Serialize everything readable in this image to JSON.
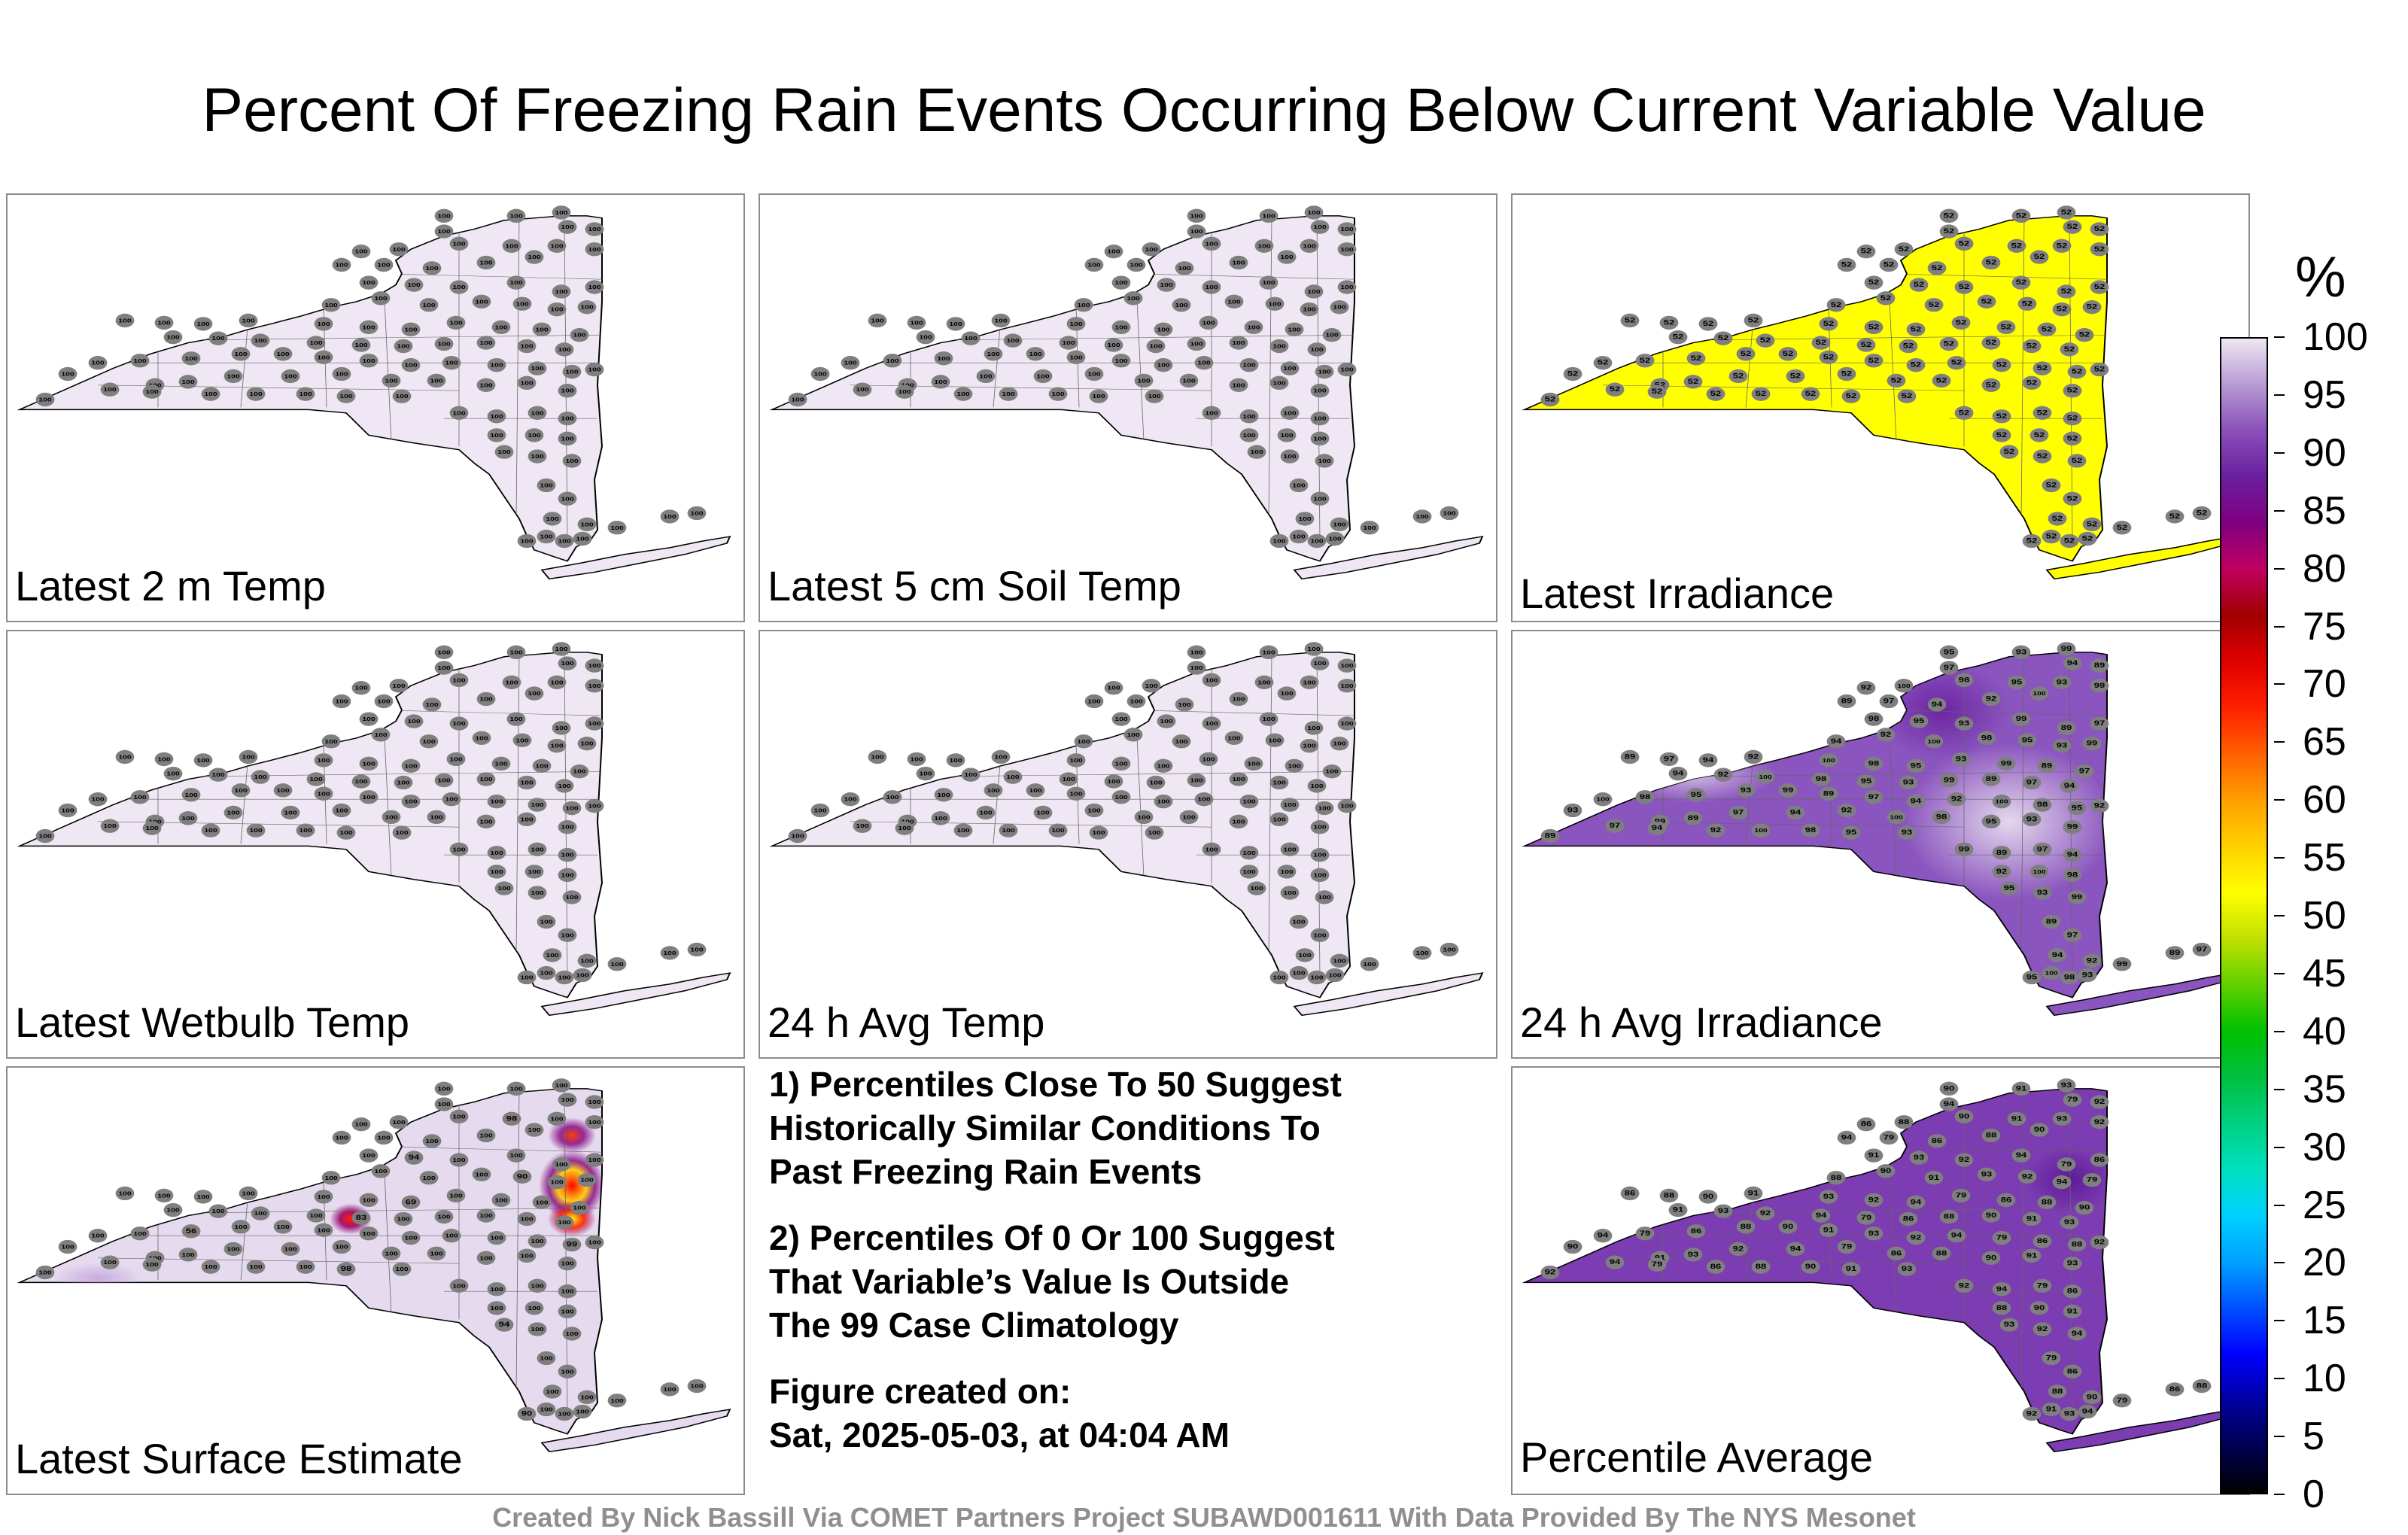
{
  "title": "Percent Of Freezing Rain Events Occurring Below Current Variable Value",
  "colorbar": {
    "unit": "%",
    "ticks": [
      "100",
      "95",
      "90",
      "85",
      "80",
      "75",
      "70",
      "65",
      "60",
      "55",
      "50",
      "45",
      "40",
      "35",
      "30",
      "25",
      "20",
      "15",
      "10",
      "5",
      "0"
    ],
    "colors": [
      "#000000",
      "#000050",
      "#0000a0",
      "#0000ff",
      "#0050ff",
      "#00a0ff",
      "#00d0ff",
      "#00e0c0",
      "#00d080",
      "#00c040",
      "#00c000",
      "#60d000",
      "#c0e000",
      "#ffff00",
      "#ffd000",
      "#ffa000",
      "#ff6000",
      "#ff2000",
      "#e00000",
      "#a00000",
      "#c00060",
      "#800080",
      "#6a1fa0",
      "#8a50b8",
      "#b89ad4",
      "#efe7f3"
    ]
  },
  "panels": [
    {
      "id": "p1",
      "label": "Latest 2 m Temp",
      "fill": "#efe7f3",
      "values": [
        "100"
      ]
    },
    {
      "id": "p2",
      "label": "Latest 5 cm Soil Temp",
      "fill": "#efe7f3",
      "values": [
        "100"
      ]
    },
    {
      "id": "p3",
      "label": "Latest Irradiance",
      "fill": "#ffff00",
      "values": [
        "52"
      ]
    },
    {
      "id": "p4",
      "label": "Latest Wetbulb Temp",
      "fill": "#efe7f3",
      "values": [
        "100"
      ]
    },
    {
      "id": "p5",
      "label": "24 h Avg Temp",
      "fill": "#efe7f3",
      "values": [
        "100"
      ]
    },
    {
      "id": "p6",
      "label": "24 h Avg Irradiance",
      "fill": "#8a55be",
      "values": [
        "92",
        "93",
        "94",
        "95",
        "97",
        "98",
        "89",
        "100",
        "99"
      ]
    },
    {
      "id": "p7",
      "label": "Latest Surface Estimate",
      "fill": "#e6daee",
      "values": [
        "100",
        "98",
        "94",
        "90",
        "69",
        "83",
        "56",
        "99"
      ]
    },
    {
      "id": "p9",
      "label": "Percentile Average",
      "fill": "#7c3cb2",
      "values": [
        "92",
        "93",
        "91",
        "90",
        "88",
        "86",
        "79",
        "94"
      ]
    }
  ],
  "notes": {
    "n1": "1) Percentiles Close To 50 Suggest\nHistorically Similar Conditions To\nPast Freezing Rain Events",
    "n2": "2) Percentiles Of 0 Or 100 Suggest\nThat Variable’s Value Is Outside\nThe 99 Case Climatology",
    "fig_label": "Figure created on:",
    "fig_date": "Sat, 2025-05-03, at 04:04 AM"
  },
  "credit": "Created By Nick Bassill Via COMET Partners Project SUBAWD001611 With Data Provided By The NYS Mesonet"
}
